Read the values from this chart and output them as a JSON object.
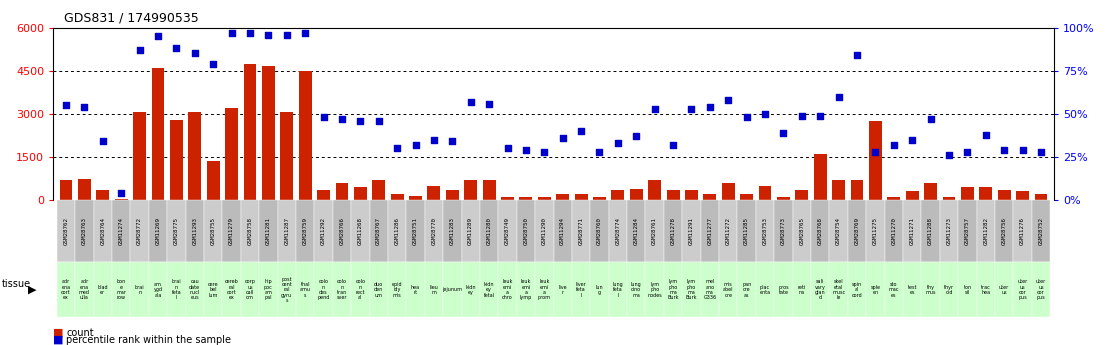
{
  "title": "GDS831 / 174990535",
  "samples": [
    "GSM28762",
    "GSM28763",
    "GSM28764",
    "GSM11274",
    "GSM28772",
    "GSM11269",
    "GSM28775",
    "GSM11293",
    "GSM28755",
    "GSM11279",
    "GSM28758",
    "GSM11281",
    "GSM11287",
    "GSM28759",
    "GSM11292",
    "GSM28766",
    "GSM11268",
    "GSM28767",
    "GSM11286",
    "GSM28751",
    "GSM28770",
    "GSM11283",
    "GSM11289",
    "GSM11280",
    "GSM28749",
    "GSM28750",
    "GSM11290",
    "GSM11294",
    "GSM28771",
    "GSM28760",
    "GSM28774",
    "GSM11284",
    "GSM28761",
    "GSM11278",
    "GSM11291",
    "GSM11277",
    "GSM11272",
    "GSM11285",
    "GSM28753",
    "GSM28773",
    "GSM28765",
    "GSM28768",
    "GSM28754",
    "GSM28769",
    "GSM11275",
    "GSM11270",
    "GSM11271",
    "GSM11288",
    "GSM11273",
    "GSM28757",
    "GSM11282",
    "GSM28756",
    "GSM11276",
    "GSM28752"
  ],
  "counts": [
    700,
    750,
    350,
    50,
    3050,
    4600,
    2800,
    3050,
    1350,
    3200,
    4750,
    4650,
    3050,
    4500,
    350,
    600,
    450,
    700,
    200,
    150,
    500,
    350,
    700,
    700,
    100,
    100,
    100,
    200,
    200,
    100,
    350,
    400,
    700,
    350,
    350,
    200,
    600,
    200,
    500,
    100,
    350,
    1600,
    700,
    700,
    2750,
    100,
    300,
    600,
    100,
    450,
    450,
    350,
    300,
    200
  ],
  "percentile_ranks": [
    55,
    54,
    34,
    4,
    87,
    95,
    88,
    85,
    79,
    97,
    97,
    96,
    96,
    97,
    48,
    47,
    46,
    46,
    30,
    32,
    35,
    34,
    57,
    56,
    30,
    29,
    28,
    36,
    40,
    28,
    33,
    37,
    53,
    32,
    53,
    54,
    58,
    48,
    50,
    39,
    49,
    49,
    60,
    84,
    28,
    32,
    35,
    47,
    26,
    28,
    38,
    29,
    29,
    28
  ],
  "tissues": [
    "adr\nena\ncort\nex",
    "adr\nena\nmed\nulla",
    "blad\ner",
    "bon\ne\nmar\nrow",
    "brai\nn",
    "am\nygd\nala",
    "brai\nn\nfeta\nl",
    "cau\ndate\nnucl\neus",
    "cere\nbel\nlum",
    "cereb\nral\ncort\nex",
    "corp\nus\ncall\nom",
    "hip\npoc\nam\npal",
    "post\ncent\nral\ngyru\ns",
    "thal\namu\ns",
    "colo\nn\ndes\npend",
    "colo\nn\ntran\nsver",
    "colo\nn\nrect\nal",
    "duo\nden\num",
    "epid\nidy\nmis",
    "hea\nrt",
    "lieu\nm",
    "jejunum",
    "kidn\ney",
    "kidn\ney\nfetal",
    "leuk\nemi\na\nchro",
    "leuk\nemi\na\nlymp",
    "leuk\nemi\na\nprom",
    "live\nr",
    "liver\nfeta\nl",
    "lun\ng",
    "lung\nfeta\nl",
    "lung\ncino\nma",
    "lym\npho\nnodes",
    "lym\npho\nma\nBurk",
    "lym\npho\nma\nBurk",
    "mel\nano\nma\nG336",
    "mis\nabel\nore",
    "pan\ncre\nas",
    "plac\nenta",
    "pros\ntate",
    "reti\nna",
    "sali\nvary\nglan\nd",
    "skel\netal\nmusc\nle",
    "spin\nal\ncord",
    "sple\nen",
    "sto\nmac\nes",
    "test\nes",
    "thy\nmus",
    "thyr\noid",
    "ton\nsil",
    "trac\nhea",
    "uter\nus",
    "uter\nus\ncor\npus",
    "uter\nus\ncor\npus"
  ],
  "ylim_left": [
    0,
    6000
  ],
  "ylim_right": [
    0,
    100
  ],
  "yticks_left": [
    0,
    1500,
    3000,
    4500,
    6000
  ],
  "yticks_right": [
    0,
    25,
    50,
    75,
    100
  ],
  "bar_color": "#cc2200",
  "scatter_color": "#0000cc",
  "bg_color": "#ffffff",
  "tissue_bg_even": "#ccffcc",
  "tissue_bg_odd": "#aaddaa",
  "label_bg_even": "#cccccc",
  "label_bg_odd": "#bbbbbb"
}
